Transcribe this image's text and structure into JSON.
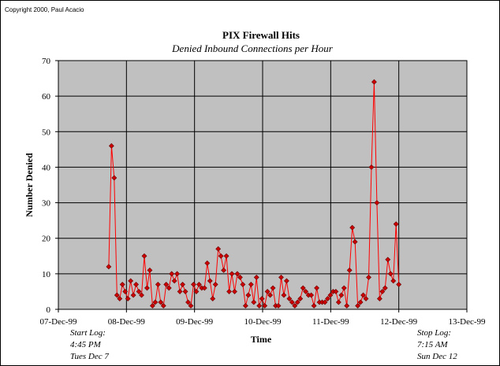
{
  "copyright": "Copyright 2000, Paul Acacio",
  "chart_data": {
    "type": "line",
    "title": "PIX Firewall Hits",
    "subtitle": "Denied Inbound Connections per Hour",
    "xlabel": "Time",
    "ylabel": "Number Denied",
    "ylim": [
      0,
      70
    ],
    "yticks": [
      "0",
      "10",
      "20",
      "30",
      "40",
      "50",
      "60",
      "70"
    ],
    "xlim_days": [
      0,
      6
    ],
    "xticks": [
      "07-Dec-99",
      "08-Dec-99",
      "09-Dec-99",
      "10-Dec-99",
      "11-Dec-99",
      "12-Dec-99",
      "13-Dec-99"
    ],
    "grid": true,
    "plot_background": "#c0c0c0",
    "series_color": "#ff0000",
    "marker_color": "#cc0000",
    "series": [
      {
        "values": [
          12,
          46,
          37,
          4,
          3,
          7,
          5,
          3,
          8,
          4,
          7,
          5,
          4,
          15,
          6,
          11,
          1,
          2,
          7,
          2,
          1,
          7,
          6,
          10,
          8,
          10,
          5,
          7,
          5,
          2,
          1,
          7,
          5,
          7,
          6,
          6,
          13,
          8,
          3,
          7,
          17,
          15,
          11,
          15,
          5,
          10,
          5,
          10,
          9,
          7,
          1,
          4,
          7,
          2,
          9,
          1,
          3,
          1,
          5,
          4,
          6,
          1,
          1,
          9,
          4,
          8,
          3,
          2,
          1,
          2,
          3,
          6,
          5,
          4,
          4,
          1,
          6,
          2,
          2,
          2,
          3,
          4,
          5,
          5,
          2,
          4,
          6,
          1,
          11,
          23,
          19,
          1,
          2,
          4,
          3,
          9,
          40,
          64,
          30,
          3,
          5,
          6,
          14,
          10,
          8,
          24,
          7
        ]
      }
    ]
  },
  "annotations": {
    "start": [
      "Start Log:",
      "4:45 PM",
      "Tues Dec 7"
    ],
    "stop": [
      "Stop Log:",
      "7:15 AM",
      "Sun Dec 12"
    ]
  }
}
